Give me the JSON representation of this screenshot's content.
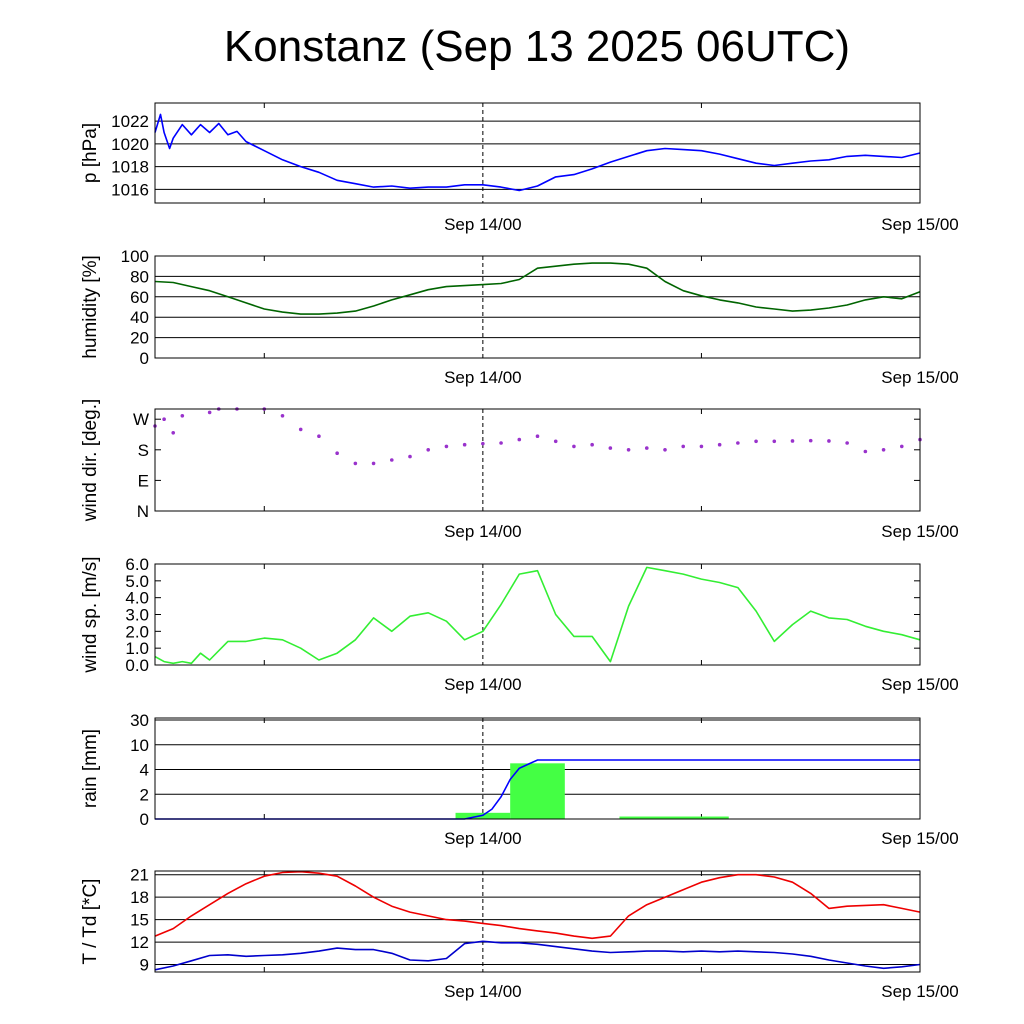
{
  "title": "Konstanz (Sep 13 2025 06UTC)",
  "x_axis": {
    "start": "2025-09-13T06:00Z",
    "end": "2025-09-15T00:00Z",
    "tick_labels": [
      "Sep 14/00",
      "Sep 15/00"
    ],
    "tick_values": [
      "2025-09-14T00:00Z",
      "2025-09-15T00:00Z"
    ],
    "minor_tick_values": [
      "2025-09-13T12:00Z",
      "2025-09-14T12:00Z"
    ],
    "marker_line": "2025-09-14T00:00Z"
  },
  "chart_data": [
    {
      "type": "line",
      "ylabel": "p [hPa]",
      "ylim": [
        1014.8,
        1023.6
      ],
      "yticks": [
        1016,
        1018,
        1020,
        1022
      ],
      "ytick_labels": [
        "1016",
        "1018",
        "1020",
        "1022"
      ],
      "grid": true,
      "series": [
        {
          "color": "#0000ff",
          "x_hours": [
            0,
            0.3,
            0.5,
            0.8,
            1,
            1.5,
            2,
            2.5,
            3,
            3.5,
            4,
            4.5,
            5,
            6,
            7,
            8,
            9,
            10,
            11,
            12,
            13,
            14,
            15,
            16,
            17,
            18,
            19,
            20,
            21,
            22,
            23,
            24,
            25,
            26,
            27,
            28,
            29,
            30,
            31,
            32,
            33,
            34,
            35,
            36,
            37,
            38,
            39,
            40,
            41,
            42
          ],
          "values": [
            1021,
            1022.6,
            1021,
            1019.6,
            1020.5,
            1021.7,
            1020.8,
            1021.7,
            1021,
            1021.8,
            1020.8,
            1021.1,
            1020.2,
            1019.4,
            1018.6,
            1018,
            1017.5,
            1016.8,
            1016.5,
            1016.2,
            1016.3,
            1016.1,
            1016.2,
            1016.2,
            1016.4,
            1016.4,
            1016.2,
            1015.9,
            1016.3,
            1017.1,
            1017.3,
            1017.8,
            1018.4,
            1018.9,
            1019.4,
            1019.6,
            1019.5,
            1019.4,
            1019.1,
            1018.7,
            1018.3,
            1018.1,
            1018.3,
            1018.5,
            1018.6,
            1018.9,
            1019,
            1018.9,
            1018.8,
            1019.2
          ]
        }
      ]
    },
    {
      "type": "line",
      "ylabel": "humidity [%]",
      "ylim": [
        0,
        100
      ],
      "yticks": [
        0,
        20,
        40,
        60,
        80,
        100
      ],
      "ytick_labels": [
        "0",
        "20",
        "40",
        "60",
        "80",
        "100"
      ],
      "grid": true,
      "series": [
        {
          "color": "#006400",
          "x_hours": [
            0,
            1,
            2,
            3,
            4,
            5,
            6,
            7,
            8,
            9,
            10,
            11,
            12,
            13,
            14,
            15,
            16,
            17,
            18,
            19,
            20,
            21,
            22,
            23,
            24,
            25,
            26,
            27,
            28,
            29,
            30,
            31,
            32,
            33,
            34,
            35,
            36,
            37,
            38,
            39,
            40,
            41,
            42
          ],
          "values": [
            75,
            74,
            70,
            66,
            60,
            54,
            48,
            45,
            43,
            43,
            44,
            46,
            51,
            57,
            62,
            67,
            70,
            71,
            72,
            73,
            77,
            88,
            90,
            92,
            93,
            93,
            92,
            88,
            75,
            66,
            61,
            57,
            54,
            50,
            48,
            46,
            47,
            49,
            52,
            57,
            60,
            58,
            65
          ]
        }
      ]
    },
    {
      "type": "scatter",
      "ylabel": "wind dir. [deg.]",
      "ylim": [
        0,
        300
      ],
      "yticks": [
        0,
        90,
        180,
        270
      ],
      "ytick_labels": [
        "N",
        "E",
        "S",
        "W"
      ],
      "grid": false,
      "series": [
        {
          "color": "#9932cc",
          "x_hours": [
            0,
            0.5,
            1,
            1.5,
            2,
            2.5,
            3,
            3.5,
            4,
            4.5,
            5,
            6,
            7,
            8,
            9,
            10,
            11,
            12,
            13,
            14,
            15,
            16,
            17,
            18,
            19,
            20,
            21,
            22,
            23,
            24,
            25,
            26,
            27,
            28,
            29,
            30,
            31,
            32,
            33,
            34,
            35,
            36,
            37,
            38,
            39,
            40,
            41,
            42
          ],
          "values": [
            250,
            270,
            230,
            280,
            330,
            320,
            290,
            300,
            310,
            300,
            320,
            300,
            280,
            240,
            220,
            170,
            140,
            140,
            150,
            160,
            180,
            190,
            195,
            198,
            200,
            210,
            220,
            205,
            190,
            195,
            185,
            180,
            185,
            180,
            190,
            190,
            195,
            200,
            205,
            205,
            206,
            207,
            206,
            200,
            175,
            180,
            190,
            210
          ]
        }
      ]
    },
    {
      "type": "line",
      "ylabel": "wind sp. [m/s]",
      "ylim": [
        0,
        6
      ],
      "yticks": [
        0,
        1,
        2,
        3,
        4,
        5,
        6
      ],
      "ytick_labels": [
        "0.0",
        "1.0",
        "2.0",
        "3.0",
        "4.0",
        "5.0",
        "6.0"
      ],
      "grid": false,
      "series": [
        {
          "color": "#33ee33",
          "x_hours": [
            0,
            0.5,
            1,
            1.5,
            2,
            2.5,
            3,
            4,
            5,
            6,
            7,
            8,
            9,
            10,
            11,
            12,
            13,
            14,
            15,
            16,
            17,
            18,
            19,
            20,
            21,
            22,
            23,
            24,
            25,
            26,
            27,
            28,
            29,
            30,
            31,
            32,
            33,
            34,
            35,
            36,
            37,
            38,
            39,
            40,
            41,
            42
          ],
          "values": [
            0.5,
            0.2,
            0.1,
            0.2,
            0.1,
            0.7,
            0.3,
            1.4,
            1.4,
            1.6,
            1.5,
            1.0,
            0.3,
            0.7,
            1.5,
            2.8,
            2.0,
            2.9,
            3.1,
            2.6,
            1.5,
            2.0,
            3.6,
            5.4,
            5.6,
            3.0,
            1.7,
            1.7,
            0.2,
            3.5,
            5.8,
            5.6,
            5.4,
            5.1,
            4.9,
            4.6,
            3.2,
            1.4,
            2.4,
            3.2,
            2.8,
            2.7,
            2.3,
            2.0,
            1.8,
            1.5
          ]
        }
      ]
    },
    {
      "type": "bar",
      "ylabel": "rain [mm]",
      "ytick_labels": [
        "0",
        "2",
        "4",
        "10",
        "30"
      ],
      "grid": true,
      "bar_color": "#44ff44",
      "line_color": "#0000ff",
      "bars": [
        {
          "from_hour": 16.5,
          "to_hour": 19.5,
          "value": 0.5
        },
        {
          "from_hour": 19.5,
          "to_hour": 22.5,
          "value": 5.5
        },
        {
          "from_hour": 25.5,
          "to_hour": 31.5,
          "value": 0.2
        }
      ],
      "cumulative": {
        "x_hours": [
          0,
          17,
          18,
          18.5,
          19,
          19.5,
          20,
          20.5,
          21,
          42
        ],
        "values": [
          0,
          0,
          0.3,
          0.8,
          1.8,
          3.2,
          4.3,
          5.3,
          6.3,
          6.3
        ]
      }
    },
    {
      "type": "line",
      "ylabel": "T / Td [*C]",
      "ylim": [
        8,
        21.5
      ],
      "yticks": [
        9,
        12,
        15,
        18,
        21
      ],
      "ytick_labels": [
        "9",
        "12",
        "15",
        "18",
        "21"
      ],
      "grid": true,
      "series": [
        {
          "color": "#ee0000",
          "x_hours": [
            0,
            1,
            2,
            3,
            4,
            5,
            6,
            7,
            8,
            9,
            10,
            11,
            12,
            13,
            14,
            15,
            16,
            17,
            18,
            19,
            20,
            21,
            22,
            23,
            24,
            25,
            26,
            27,
            28,
            29,
            30,
            31,
            32,
            33,
            34,
            35,
            36,
            37,
            38,
            39,
            40,
            41,
            42
          ],
          "values": [
            12.8,
            13.8,
            15.5,
            17,
            18.5,
            19.8,
            20.8,
            21.3,
            21.4,
            21.2,
            20.8,
            19.5,
            18,
            16.8,
            16,
            15.5,
            15,
            14.8,
            14.5,
            14.2,
            13.8,
            13.5,
            13.2,
            12.8,
            12.5,
            12.8,
            15.5,
            17,
            18,
            19,
            20,
            20.6,
            21,
            21,
            20.7,
            20,
            18.5,
            16.5,
            16.8,
            16.9,
            17,
            16.5,
            16
          ]
        },
        {
          "color": "#0000cc",
          "x_hours": [
            0,
            1,
            2,
            3,
            4,
            5,
            6,
            7,
            8,
            9,
            10,
            11,
            12,
            13,
            14,
            15,
            16,
            17,
            18,
            19,
            20,
            21,
            22,
            23,
            24,
            25,
            26,
            27,
            28,
            29,
            30,
            31,
            32,
            33,
            34,
            35,
            36,
            37,
            38,
            39,
            40,
            41,
            42
          ],
          "values": [
            8.3,
            8.8,
            9.5,
            10.2,
            10.3,
            10.1,
            10.2,
            10.3,
            10.5,
            10.8,
            11.2,
            11,
            11,
            10.5,
            9.6,
            9.5,
            9.8,
            11.8,
            12.1,
            11.9,
            11.9,
            11.7,
            11.4,
            11.1,
            10.8,
            10.6,
            10.7,
            10.8,
            10.8,
            10.7,
            10.8,
            10.7,
            10.8,
            10.7,
            10.6,
            10.4,
            10.1,
            9.6,
            9.2,
            8.8,
            8.5,
            8.7,
            9
          ]
        }
      ]
    }
  ]
}
